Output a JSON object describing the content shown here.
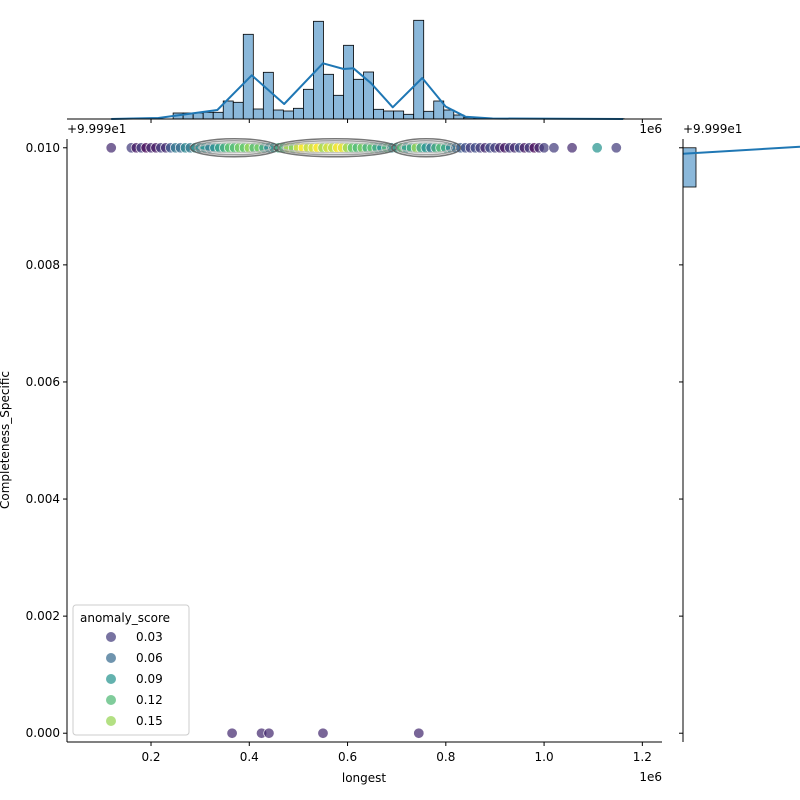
{
  "chart_data": {
    "type": "scatter",
    "kind": "jointplot",
    "xlabel": "longest",
    "ylabel": "Completeness_Specific",
    "x_scale_label": "1e6",
    "y_offset_label": "+9.999e1",
    "xlim": [
      0.029,
      1.24
    ],
    "ylim": [
      -0.00015,
      0.01015
    ],
    "x_ticks": [
      0.2,
      0.4,
      0.6,
      0.8,
      1.0,
      1.2
    ],
    "x_tick_labels": [
      "0.2",
      "0.4",
      "0.6",
      "0.8",
      "1.0",
      "1.2"
    ],
    "y_ticks": [
      0.0,
      0.002,
      0.004,
      0.006,
      0.008,
      0.01
    ],
    "y_tick_labels": [
      "0.000",
      "0.002",
      "0.004",
      "0.006",
      "0.008",
      "0.010"
    ],
    "hue": {
      "name": "anomaly_score",
      "range": [
        0,
        0.18
      ],
      "legend_title": "anomaly_score",
      "legend_placement": "lower-left",
      "legend_entries": [
        {
          "label": "0.03",
          "value": 0.03
        },
        {
          "label": "0.06",
          "value": 0.06
        },
        {
          "label": "0.09",
          "value": 0.09
        },
        {
          "label": "0.12",
          "value": 0.12
        },
        {
          "label": "0.15",
          "value": 0.15
        }
      ]
    },
    "points_top_row_y": 0.01,
    "points_top_row": [
      [
        0.119,
        0.02
      ],
      [
        0.16,
        0.03
      ],
      [
        0.17,
        0.01
      ],
      [
        0.18,
        0.03
      ],
      [
        0.19,
        0.0
      ],
      [
        0.2,
        0.02
      ],
      [
        0.21,
        0.01
      ],
      [
        0.22,
        0.03
      ],
      [
        0.23,
        0.02
      ],
      [
        0.24,
        0.05
      ],
      [
        0.25,
        0.07
      ],
      [
        0.26,
        0.06
      ],
      [
        0.27,
        0.08
      ],
      [
        0.28,
        0.07
      ],
      [
        0.29,
        0.09
      ],
      [
        0.3,
        0.08
      ],
      [
        0.31,
        0.09
      ],
      [
        0.32,
        0.07
      ],
      [
        0.33,
        0.09
      ],
      [
        0.34,
        0.1
      ],
      [
        0.35,
        0.11
      ],
      [
        0.36,
        0.13
      ],
      [
        0.37,
        0.12
      ],
      [
        0.38,
        0.14
      ],
      [
        0.39,
        0.13
      ],
      [
        0.4,
        0.15
      ],
      [
        0.41,
        0.12
      ],
      [
        0.42,
        0.14
      ],
      [
        0.43,
        0.1
      ],
      [
        0.44,
        0.08
      ],
      [
        0.45,
        0.09
      ],
      [
        0.46,
        0.11
      ],
      [
        0.47,
        0.12
      ],
      [
        0.48,
        0.16
      ],
      [
        0.49,
        0.14
      ],
      [
        0.5,
        0.17
      ],
      [
        0.51,
        0.18
      ],
      [
        0.52,
        0.16
      ],
      [
        0.53,
        0.17
      ],
      [
        0.54,
        0.18
      ],
      [
        0.55,
        0.15
      ],
      [
        0.56,
        0.17
      ],
      [
        0.57,
        0.16
      ],
      [
        0.58,
        0.18
      ],
      [
        0.59,
        0.17
      ],
      [
        0.6,
        0.15
      ],
      [
        0.61,
        0.13
      ],
      [
        0.62,
        0.12
      ],
      [
        0.63,
        0.14
      ],
      [
        0.64,
        0.11
      ],
      [
        0.65,
        0.13
      ],
      [
        0.66,
        0.1
      ],
      [
        0.67,
        0.09
      ],
      [
        0.68,
        0.12
      ],
      [
        0.69,
        0.08
      ],
      [
        0.7,
        0.1
      ],
      [
        0.71,
        0.13
      ],
      [
        0.72,
        0.09
      ],
      [
        0.73,
        0.11
      ],
      [
        0.74,
        0.15
      ],
      [
        0.75,
        0.1
      ],
      [
        0.76,
        0.09
      ],
      [
        0.77,
        0.07
      ],
      [
        0.78,
        0.11
      ],
      [
        0.79,
        0.12
      ],
      [
        0.8,
        0.1
      ],
      [
        0.81,
        0.08
      ],
      [
        0.82,
        0.06
      ],
      [
        0.83,
        0.05
      ],
      [
        0.84,
        0.04
      ],
      [
        0.85,
        0.03
      ],
      [
        0.86,
        0.04
      ],
      [
        0.87,
        0.03
      ],
      [
        0.88,
        0.02
      ],
      [
        0.89,
        0.04
      ],
      [
        0.9,
        0.03
      ],
      [
        0.91,
        0.02
      ],
      [
        0.92,
        0.01
      ],
      [
        0.93,
        0.03
      ],
      [
        0.94,
        0.02
      ],
      [
        0.95,
        0.04
      ],
      [
        0.96,
        0.01
      ],
      [
        0.97,
        0.03
      ],
      [
        0.98,
        0.0
      ],
      [
        0.99,
        0.02
      ],
      [
        1.0,
        0.03
      ],
      [
        1.02,
        0.03
      ],
      [
        1.057,
        0.02
      ],
      [
        1.108,
        0.09
      ],
      [
        1.147,
        0.03
      ]
    ],
    "points_bottom_row_y": 0.0,
    "points_bottom_row": [
      [
        0.365,
        0.02
      ],
      [
        0.425,
        0.02
      ],
      [
        0.44,
        0.02
      ],
      [
        0.55,
        0.02
      ],
      [
        0.745,
        0.02
      ]
    ],
    "kde_contours": [
      [
        0.28,
        0.46
      ],
      [
        0.45,
        0.7
      ],
      [
        0.69,
        0.83
      ]
    ],
    "x_marginal_hist": {
      "bin_start": 0.245,
      "bin_width": 0.0204,
      "counts": [
        6,
        6,
        6,
        6.7,
        6.7,
        18,
        16.7,
        84.7,
        10,
        46.7,
        9,
        8,
        10.7,
        29.7,
        97.7,
        44.7,
        23.7,
        73.7,
        39.7,
        47,
        9.7,
        8,
        8,
        4.7,
        98.7,
        7.7,
        18,
        9,
        4,
        1.3,
        0.7,
        0.4,
        0.3,
        0.3,
        0.3,
        0.3,
        0.3,
        0.3,
        0.3,
        0.3,
        0.3,
        0.3,
        0.3,
        0.3,
        0.3
      ],
      "ylim": [
        0,
        100
      ],
      "kde": [
        [
          0.119,
          0
        ],
        [
          0.215,
          1
        ],
        [
          0.335,
          9
        ],
        [
          0.405,
          43.7
        ],
        [
          0.471,
          15
        ],
        [
          0.55,
          55.7
        ],
        [
          0.592,
          50
        ],
        [
          0.612,
          50.7
        ],
        [
          0.648,
          35.7
        ],
        [
          0.692,
          11.7
        ],
        [
          0.752,
          41
        ],
        [
          0.8,
          12.3
        ],
        [
          0.84,
          2.3
        ],
        [
          0.895,
          0.5
        ],
        [
          1.161,
          0
        ]
      ]
    },
    "y_marginal_hist": {
      "bin": [
        0.00933,
        0.01
      ]
    }
  }
}
